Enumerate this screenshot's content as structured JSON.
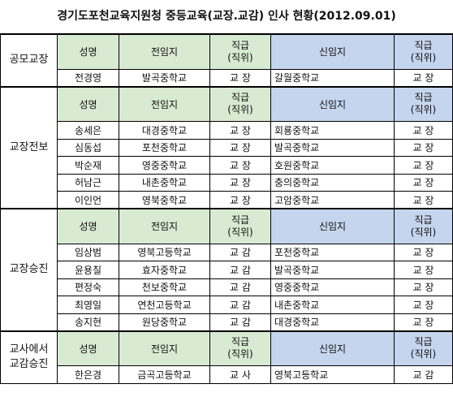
{
  "title": "경기도포천교육지원청 중등교육(교장.교감) 인사 현황(2012.09.01)",
  "headers": {
    "name": "성명",
    "prev": "전임지",
    "level_line1": "직급",
    "level_line2": "(직위)",
    "next": "신임지"
  },
  "sections": [
    {
      "label": "공모교장",
      "rows": [
        {
          "name": "전경영",
          "prev": "발곡중학교",
          "prev_level": "교 장",
          "next": "갈월중학교",
          "next_level": "교 장"
        }
      ]
    },
    {
      "label": "교장전보",
      "rows": [
        {
          "name": "송세은",
          "prev": "대경중학교",
          "prev_level": "교 장",
          "next": "회룡중학교",
          "next_level": "교 장"
        },
        {
          "name": "심동섭",
          "prev": "포천중학교",
          "prev_level": "교 장",
          "next": "발곡중학교",
          "next_level": "교 장"
        },
        {
          "name": "박순재",
          "prev": "영중중학교",
          "prev_level": "교 장",
          "next": "호원중학교",
          "next_level": "교 장"
        },
        {
          "name": "허남근",
          "prev": "내촌중학교",
          "prev_level": "교 장",
          "next": "충의중학교",
          "next_level": "교 장"
        },
        {
          "name": "이인언",
          "prev": "영북중학교",
          "prev_level": "교 장",
          "next": "고암중학교",
          "next_level": "교 장"
        }
      ]
    },
    {
      "label": "교장승진",
      "rows": [
        {
          "name": "임상범",
          "prev": "영북고등학교",
          "prev_level": "교 감",
          "next": "포천중학교",
          "next_level": "교 장"
        },
        {
          "name": "윤용칠",
          "prev": "효자중학교",
          "prev_level": "교 감",
          "next": "발곡중학교",
          "next_level": "교 장"
        },
        {
          "name": "편정숙",
          "prev": "천보중학교",
          "prev_level": "교 감",
          "next": "영중중학교",
          "next_level": "교 장"
        },
        {
          "name": "최영일",
          "prev": "연천고등학교",
          "prev_level": "교 감",
          "next": "내촌중학교",
          "next_level": "교 장"
        },
        {
          "name": "송지현",
          "prev": "원당중학교",
          "prev_level": "교 감",
          "next": "대경중학교",
          "next_level": "교 장"
        }
      ]
    },
    {
      "label_line1": "교사에서",
      "label_line2": "교감승진",
      "rows": [
        {
          "name": "한은경",
          "prev": "금곡고등학교",
          "prev_level": "교 사",
          "next": "영북고등학교",
          "next_level": "교 감"
        }
      ]
    }
  ],
  "colors": {
    "header_green": "#d9ead3",
    "header_blue": "#c6d5ee"
  }
}
